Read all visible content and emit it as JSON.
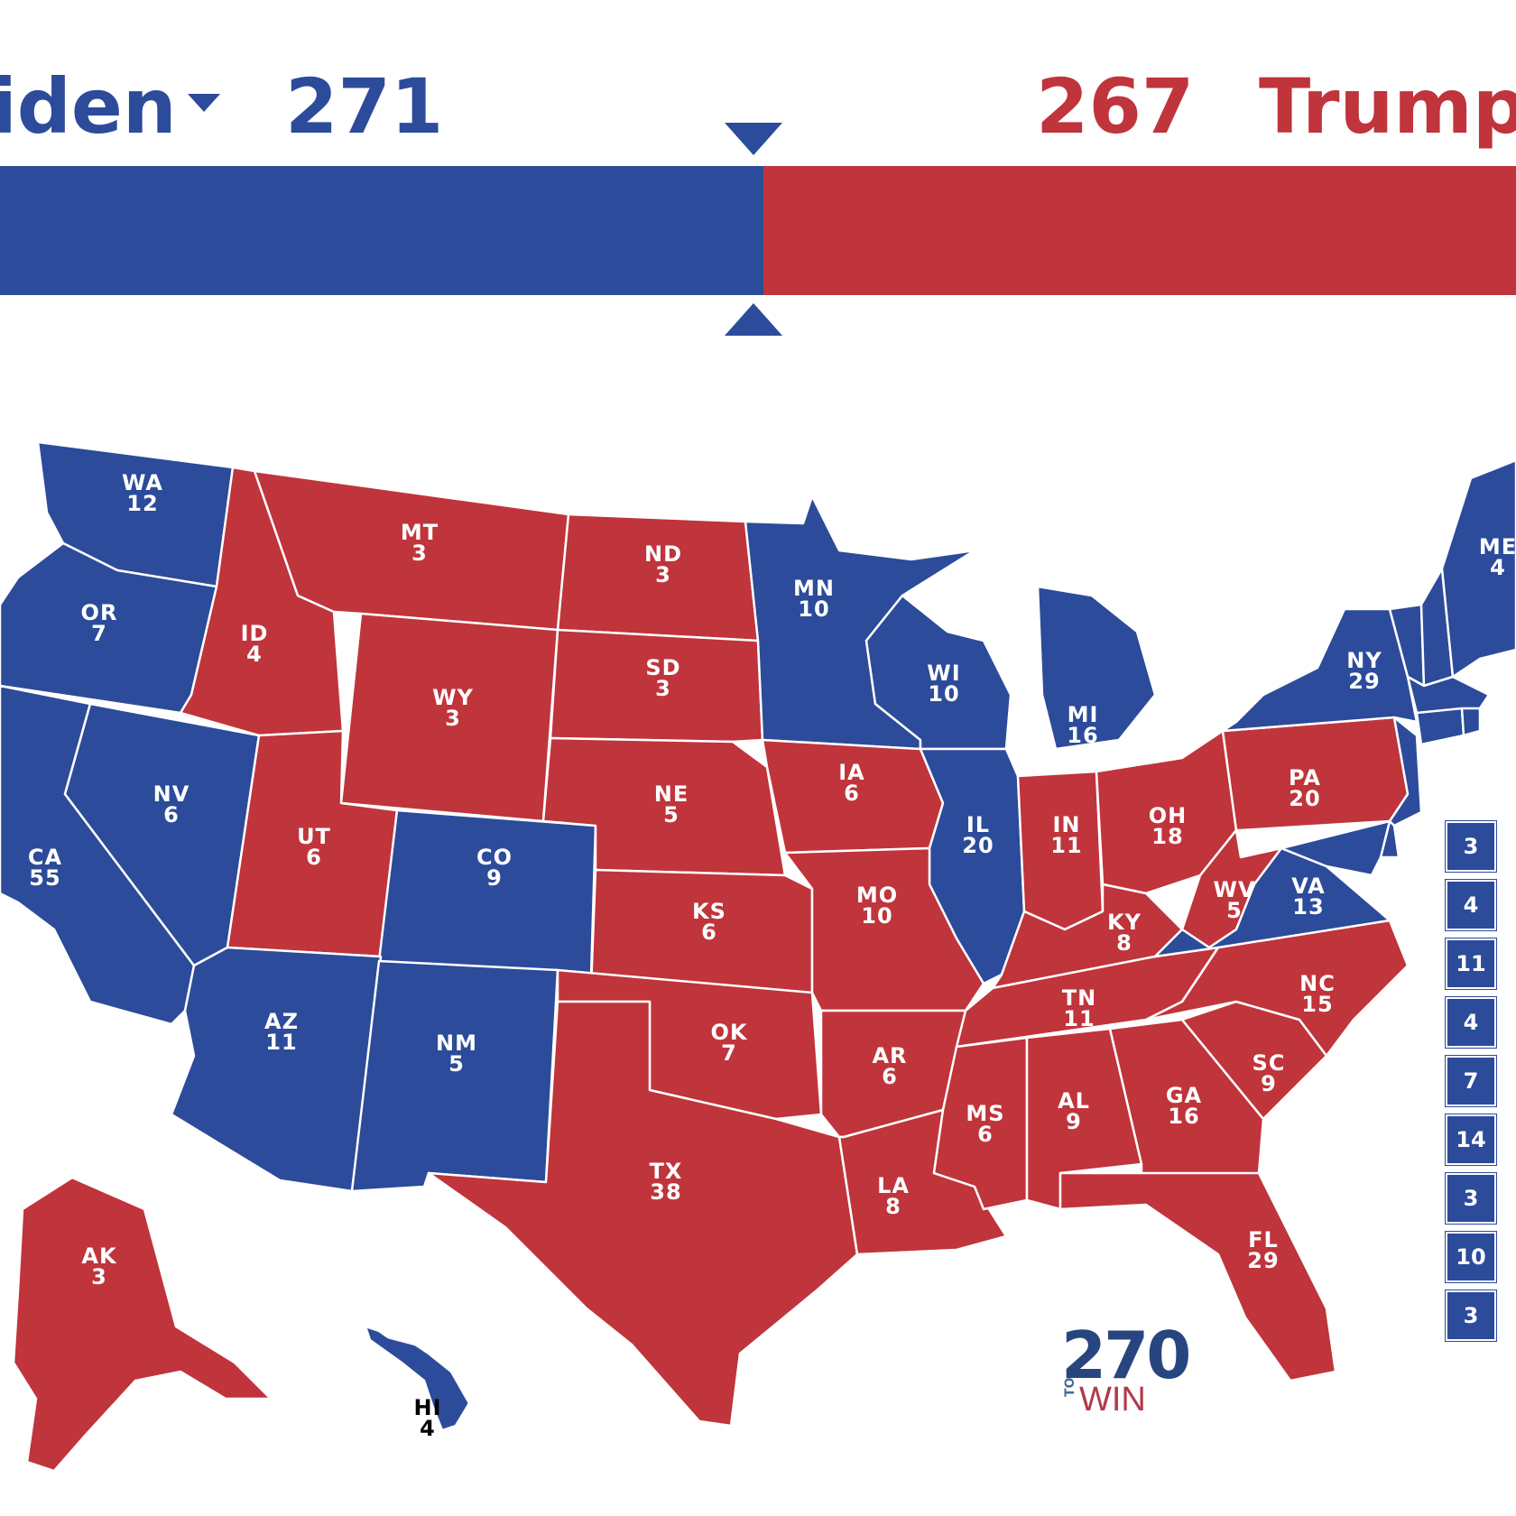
{
  "header": {
    "dem_name": "iden",
    "dem_votes": "271",
    "rep_votes": "267",
    "rep_name": "Trump",
    "dem_color": "#2c4b9a",
    "rep_color": "#c0343b"
  },
  "bar": {
    "dem_fraction": 0.5037,
    "rep_fraction": 0.4963
  },
  "icons": {
    "dem_dropdown": "caret-down-icon",
    "marker_top": "triangle-down-icon",
    "marker_bottom": "triangle-up-icon"
  },
  "states": {
    "WA": "12",
    "OR": "7",
    "CA": "55",
    "NV": "6",
    "ID": "4",
    "MT": "3",
    "WY": "3",
    "UT": "6",
    "CO": "9",
    "AZ": "11",
    "NM": "5",
    "ND": "3",
    "SD": "3",
    "NE": "5",
    "KS": "6",
    "OK": "7",
    "TX": "38",
    "MN": "10",
    "IA": "6",
    "MO": "10",
    "AR": "6",
    "LA": "8",
    "WI": "10",
    "IL": "20",
    "MI": "16",
    "IN": "11",
    "OH": "18",
    "KY": "8",
    "TN": "11",
    "MS": "6",
    "AL": "9",
    "GA": "16",
    "FL": "29",
    "SC": "9",
    "NC": "15",
    "VA": "13",
    "WV": "5",
    "PA": "20",
    "NY": "29",
    "ME": "4",
    "AK": "3",
    "HI": "4"
  },
  "winners": {
    "WA": "D",
    "OR": "D",
    "CA": "D",
    "NV": "D",
    "ID": "R",
    "MT": "R",
    "WY": "R",
    "UT": "R",
    "CO": "D",
    "AZ": "D",
    "NM": "D",
    "ND": "R",
    "SD": "R",
    "NE": "R",
    "KS": "R",
    "OK": "R",
    "TX": "R",
    "MN": "D",
    "IA": "R",
    "MO": "R",
    "AR": "R",
    "LA": "R",
    "WI": "D",
    "IL": "D",
    "MI": "D",
    "IN": "R",
    "OH": "R",
    "KY": "R",
    "TN": "R",
    "MS": "R",
    "AL": "R",
    "GA": "R",
    "FL": "R",
    "SC": "R",
    "NC": "R",
    "VA": "D",
    "WV": "R",
    "PA": "R",
    "NY": "D",
    "ME": "D",
    "AK": "R",
    "HI": "D",
    "VT": "D",
    "NH": "D",
    "MA": "D",
    "CT": "D",
    "RI": "D",
    "NJ": "D",
    "DE": "D",
    "MD": "D"
  },
  "small_states": [
    "3",
    "4",
    "11",
    "4",
    "7",
    "14",
    "3",
    "10",
    "3"
  ],
  "logo": {
    "number": "270",
    "to": "TO",
    "win": "WIN"
  }
}
